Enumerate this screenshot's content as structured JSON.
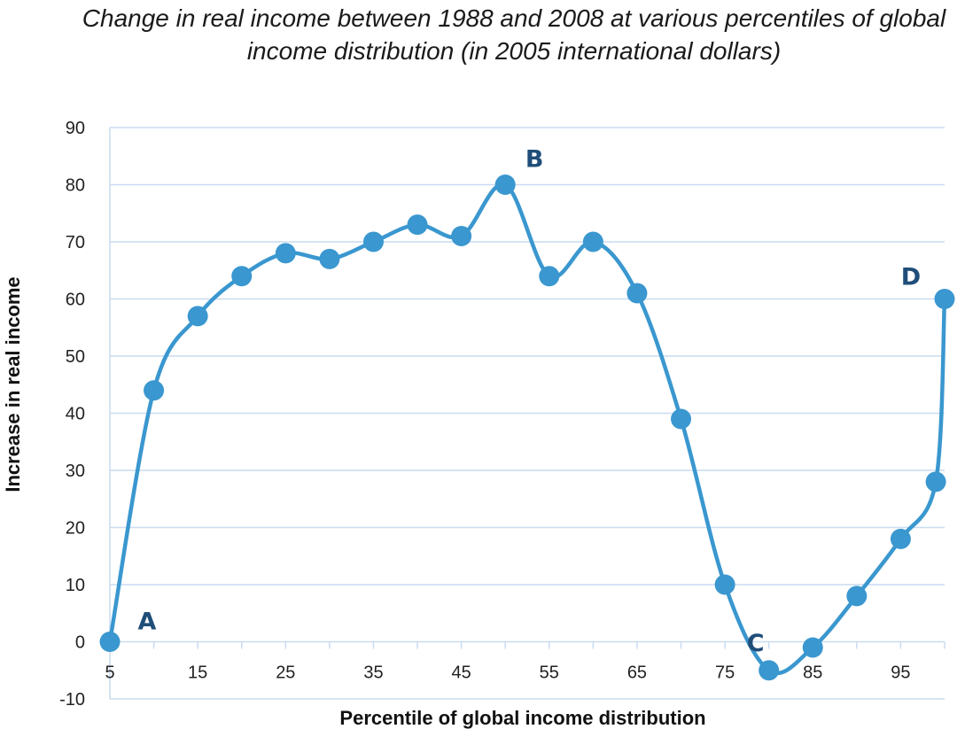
{
  "chart_data": {
    "type": "line",
    "title": "Change in real income between 1988 and 2008 at various percentiles of global income distribution  (in 2005 international dollars)",
    "xlabel": "Percentile of global income distribution",
    "ylabel": "Increase in real income",
    "xlim": [
      5,
      100
    ],
    "ylim": [
      -10,
      90
    ],
    "x_ticks": [
      5,
      15,
      25,
      35,
      45,
      55,
      65,
      75,
      85,
      95
    ],
    "y_ticks": [
      -10,
      0,
      10,
      20,
      30,
      40,
      50,
      60,
      70,
      80,
      90
    ],
    "grid": true,
    "series": [
      {
        "color": "#3a97cf",
        "smooth": true,
        "x": [
          5,
          10,
          15,
          20,
          25,
          30,
          35,
          40,
          45,
          50,
          55,
          60,
          65,
          70,
          75,
          80,
          85,
          90,
          95,
          99,
          100
        ],
        "y": [
          0,
          44,
          57,
          64,
          68,
          67,
          70,
          73,
          71,
          80,
          64,
          70,
          61,
          39,
          10,
          -5,
          -1,
          8,
          18,
          28,
          60
        ]
      }
    ],
    "annotations": [
      {
        "text": "A",
        "x": 5,
        "y": 0
      },
      {
        "text": "B",
        "x": 50,
        "y": 80
      },
      {
        "text": "C",
        "x": 80,
        "y": -5
      },
      {
        "text": "D",
        "x": 100,
        "y": 60
      }
    ]
  },
  "colors": {
    "line": "#3a97cf",
    "grid": "#c9dcf0",
    "annotation": "#1f4e79"
  }
}
